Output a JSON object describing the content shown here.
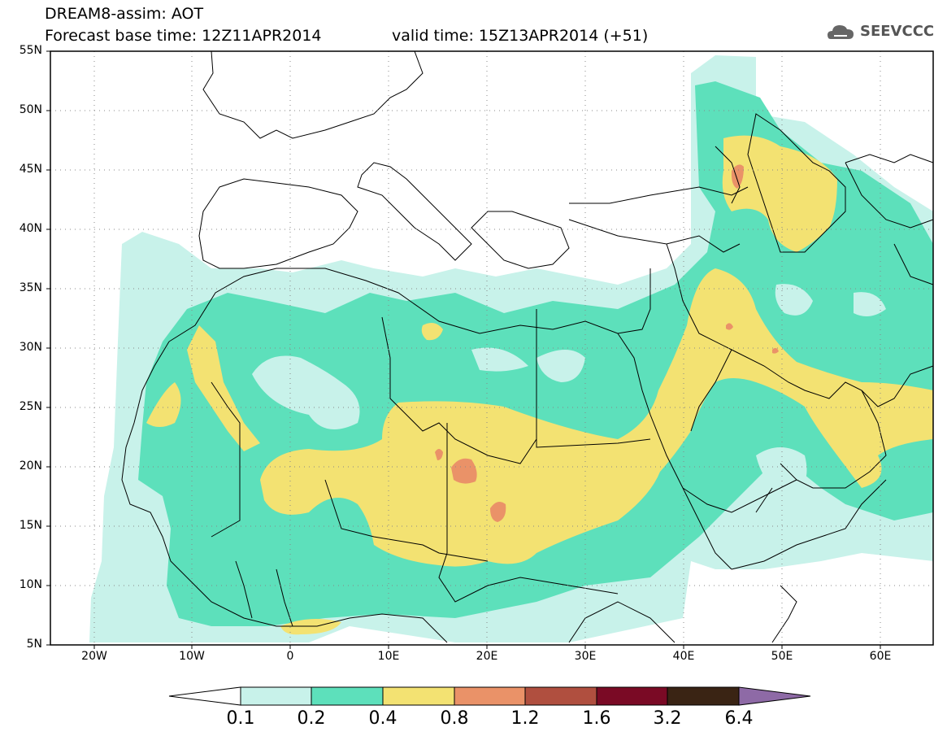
{
  "header": {
    "title": "DREAM8-assim: AOT",
    "base_time": "Forecast base time: 12Z11APR2014",
    "valid_time": "valid time: 15Z13APR2014 (+51)",
    "logo_text": "SEEVCCC"
  },
  "map": {
    "extent_lon": [
      -25,
      65
    ],
    "extent_lat": [
      5,
      55
    ],
    "lat_labels": [
      "55N",
      "50N",
      "45N",
      "40N",
      "35N",
      "30N",
      "25N",
      "20N",
      "15N",
      "10N",
      "5N"
    ],
    "lon_labels": [
      "20W",
      "10W",
      "0",
      "10E",
      "20E",
      "30E",
      "40E",
      "50E",
      "60E"
    ],
    "grid": "dotted",
    "colors": {
      "ocean": "#ffffff",
      "coast": "#000000"
    }
  },
  "colorbar": {
    "labels": [
      "0.1",
      "0.2",
      "0.4",
      "0.8",
      "1.2",
      "1.6",
      "3.2",
      "6.4"
    ],
    "colors": [
      "#ffffff",
      "#c8f2ea",
      "#5de0bb",
      "#f3e272",
      "#ea9268",
      "#b04f3f",
      "#7a0a25",
      "#3a2414",
      "#8e6aa6"
    ]
  }
}
